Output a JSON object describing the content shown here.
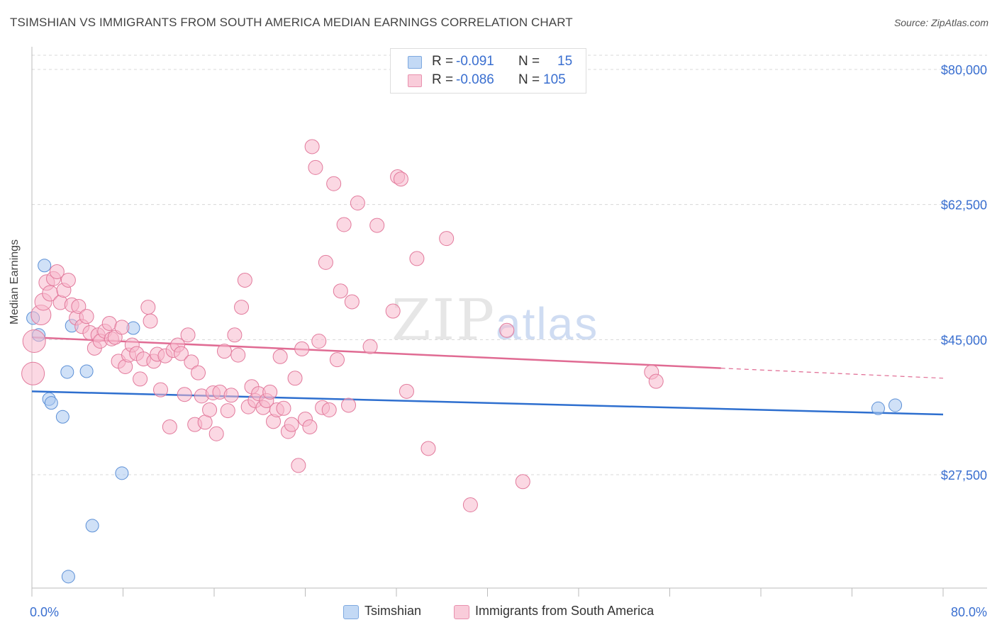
{
  "title": "TSIMSHIAN VS IMMIGRANTS FROM SOUTH AMERICA MEDIAN EARNINGS CORRELATION CHART",
  "source": "Source: ZipAtlas.com",
  "watermark": {
    "zip": "ZIP",
    "atlas": "atlas"
  },
  "legend": {
    "rows": [
      {
        "r_label": "R =",
        "r_value": "-0.091",
        "n_label": "N =",
        "n_value": "15",
        "color": "#a9c8f0"
      },
      {
        "r_label": "R =",
        "r_value": "-0.086",
        "n_label": "N =",
        "n_value": "105",
        "color": "#f7b8cc"
      }
    ]
  },
  "bottom_legend": [
    {
      "label": "Tsimshian",
      "color": "#a9c8f0"
    },
    {
      "label": "Immigrants from South America",
      "color": "#f7b8cc"
    }
  ],
  "chart_data": {
    "type": "scatter",
    "title": "TSIMSHIAN VS IMMIGRANTS FROM SOUTH AMERICA MEDIAN EARNINGS CORRELATION CHART",
    "xlabel": "",
    "ylabel": "Median Earnings",
    "xlim": [
      0,
      80
    ],
    "ylim": [
      11000,
      82000
    ],
    "x_tick_labels": [
      {
        "value": 0,
        "label": "0.0%"
      },
      {
        "value": 80,
        "label": "80.0%"
      }
    ],
    "y_ticks": [
      {
        "value": 80000,
        "label": "$80,000"
      },
      {
        "value": 62500,
        "label": "$62,500"
      },
      {
        "value": 45000,
        "label": "$45,000"
      },
      {
        "value": 27500,
        "label": "$27,500"
      }
    ],
    "series": [
      {
        "name": "Tsimshian",
        "color": "#a9c8f0",
        "stroke": "#5b8fd6",
        "trend": {
          "x0": 0,
          "y0": 38300,
          "x1": 80,
          "y1": 35300,
          "color": "#2e6fcf"
        },
        "points": [
          [
            0.1,
            47800,
            9
          ],
          [
            0.6,
            45600,
            9
          ],
          [
            1.1,
            54600,
            9
          ],
          [
            1.5,
            37300,
            9
          ],
          [
            1.7,
            36800,
            9
          ],
          [
            2.7,
            35000,
            9
          ],
          [
            3.1,
            40800,
            9
          ],
          [
            3.5,
            46800,
            9
          ],
          [
            4.8,
            40900,
            9
          ],
          [
            5.3,
            20900,
            9
          ],
          [
            3.2,
            14300,
            9
          ],
          [
            7.9,
            27700,
            9
          ],
          [
            8.9,
            46500,
            9
          ],
          [
            74.3,
            36100,
            9
          ],
          [
            75.8,
            36500,
            9
          ]
        ]
      },
      {
        "name": "Immigrants from South America",
        "color": "#f7b8cc",
        "stroke": "#e27a9c",
        "trend": {
          "x0": 0,
          "y0": 45300,
          "x1": 60.5,
          "y1": 41300,
          "color": "#e06b93",
          "dash_to_x": 80,
          "dash_to_y": 40000
        },
        "points": [
          [
            0.1,
            40600,
            16
          ],
          [
            0.2,
            44800,
            16
          ],
          [
            0.8,
            48200,
            14
          ],
          [
            1.0,
            49900,
            12
          ],
          [
            1.3,
            52400,
            11
          ],
          [
            1.6,
            51000,
            11
          ],
          [
            1.9,
            52900,
            10
          ],
          [
            2.2,
            53800,
            10
          ],
          [
            2.5,
            49800,
            10
          ],
          [
            2.8,
            51400,
            10
          ],
          [
            3.2,
            52700,
            10
          ],
          [
            3.5,
            49500,
            10
          ],
          [
            3.9,
            47800,
            10
          ],
          [
            4.1,
            49300,
            10
          ],
          [
            4.4,
            46700,
            10
          ],
          [
            4.8,
            48000,
            10
          ],
          [
            5.1,
            45900,
            10
          ],
          [
            5.5,
            43900,
            10
          ],
          [
            5.8,
            45600,
            10
          ],
          [
            6.0,
            44800,
            10
          ],
          [
            6.4,
            46100,
            10
          ],
          [
            6.8,
            47100,
            10
          ],
          [
            7.0,
            45100,
            10
          ],
          [
            7.3,
            45300,
            10
          ],
          [
            7.6,
            42200,
            10
          ],
          [
            7.9,
            46600,
            10
          ],
          [
            8.2,
            41500,
            10
          ],
          [
            8.5,
            43000,
            10
          ],
          [
            8.8,
            44300,
            10
          ],
          [
            9.2,
            43200,
            10
          ],
          [
            9.5,
            39900,
            10
          ],
          [
            9.8,
            42500,
            10
          ],
          [
            10.2,
            49200,
            10
          ],
          [
            10.4,
            47400,
            10
          ],
          [
            10.7,
            42200,
            10
          ],
          [
            11.0,
            43100,
            10
          ],
          [
            11.3,
            38500,
            10
          ],
          [
            11.7,
            42900,
            10
          ],
          [
            12.1,
            33700,
            10
          ],
          [
            12.4,
            43600,
            10
          ],
          [
            12.8,
            44300,
            10
          ],
          [
            13.1,
            43200,
            10
          ],
          [
            13.4,
            37900,
            10
          ],
          [
            13.7,
            45600,
            10
          ],
          [
            14.0,
            42100,
            10
          ],
          [
            14.3,
            34000,
            10
          ],
          [
            14.6,
            40700,
            10
          ],
          [
            14.9,
            37700,
            10
          ],
          [
            15.2,
            34300,
            10
          ],
          [
            15.6,
            35900,
            10
          ],
          [
            15.9,
            38100,
            10
          ],
          [
            16.2,
            32800,
            10
          ],
          [
            16.5,
            38200,
            10
          ],
          [
            16.9,
            43500,
            10
          ],
          [
            17.2,
            35800,
            10
          ],
          [
            17.5,
            37800,
            10
          ],
          [
            17.8,
            45600,
            10
          ],
          [
            18.1,
            43000,
            10
          ],
          [
            18.4,
            49200,
            10
          ],
          [
            18.7,
            52700,
            10
          ],
          [
            19.0,
            36300,
            10
          ],
          [
            19.3,
            38900,
            10
          ],
          [
            19.6,
            37100,
            10
          ],
          [
            19.9,
            38000,
            10
          ],
          [
            20.3,
            36200,
            10
          ],
          [
            20.6,
            37100,
            10
          ],
          [
            20.9,
            38200,
            10
          ],
          [
            21.2,
            34400,
            10
          ],
          [
            21.5,
            35900,
            10
          ],
          [
            21.8,
            42800,
            10
          ],
          [
            22.1,
            36100,
            10
          ],
          [
            22.5,
            33100,
            10
          ],
          [
            22.8,
            34000,
            10
          ],
          [
            23.1,
            40000,
            10
          ],
          [
            23.4,
            28700,
            10
          ],
          [
            23.7,
            43800,
            10
          ],
          [
            24.0,
            34700,
            10
          ],
          [
            24.4,
            33700,
            10
          ],
          [
            24.6,
            70000,
            10
          ],
          [
            24.9,
            67300,
            10
          ],
          [
            25.2,
            44800,
            10
          ],
          [
            25.5,
            36200,
            10
          ],
          [
            25.8,
            55000,
            10
          ],
          [
            26.1,
            35900,
            10
          ],
          [
            26.5,
            65200,
            10
          ],
          [
            26.8,
            42400,
            10
          ],
          [
            27.1,
            51300,
            10
          ],
          [
            27.4,
            59900,
            10
          ],
          [
            27.8,
            36500,
            10
          ],
          [
            28.1,
            49900,
            10
          ],
          [
            28.6,
            62700,
            10
          ],
          [
            29.7,
            44100,
            10
          ],
          [
            30.3,
            59800,
            10
          ],
          [
            31.7,
            48700,
            10
          ],
          [
            32.1,
            66100,
            10
          ],
          [
            32.4,
            65800,
            10
          ],
          [
            32.9,
            38300,
            10
          ],
          [
            33.8,
            55500,
            10
          ],
          [
            34.8,
            30900,
            10
          ],
          [
            36.4,
            58100,
            10
          ],
          [
            38.5,
            23600,
            10
          ],
          [
            41.7,
            46200,
            10
          ],
          [
            43.1,
            26600,
            10
          ],
          [
            54.4,
            40800,
            10
          ],
          [
            54.8,
            39600,
            10
          ]
        ]
      }
    ]
  }
}
